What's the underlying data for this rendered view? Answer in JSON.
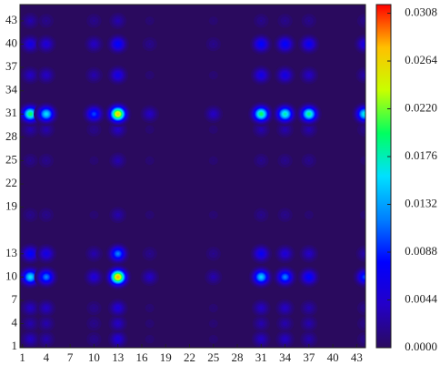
{
  "chart_data": {
    "type": "heatmap",
    "x": [
      2,
      4,
      10,
      13,
      17,
      25,
      31,
      34,
      37,
      44
    ],
    "y": [
      2,
      4,
      6,
      10,
      13,
      18,
      25,
      29,
      31,
      36,
      40,
      43
    ],
    "values": [
      [
        0.004,
        0.003,
        0.002,
        0.005,
        0.001,
        0.001,
        0.004,
        0.004,
        0.003,
        0.002
      ],
      [
        0.003,
        0.003,
        0.002,
        0.004,
        0.001,
        0.001,
        0.003,
        0.003,
        0.003,
        0.002
      ],
      [
        0.004,
        0.004,
        0.002,
        0.005,
        0.001,
        0.001,
        0.004,
        0.004,
        0.003,
        0.002
      ],
      [
        0.016,
        0.012,
        0.005,
        0.028,
        0.004,
        0.003,
        0.015,
        0.012,
        0.008,
        0.01
      ],
      [
        0.008,
        0.006,
        0.003,
        0.012,
        0.002,
        0.002,
        0.007,
        0.005,
        0.004,
        0.003
      ],
      [
        0.002,
        0.002,
        0.001,
        0.003,
        0.001,
        0.001,
        0.002,
        0.002,
        0.001,
        0.001
      ],
      [
        0.002,
        0.002,
        0.001,
        0.003,
        0.001,
        0.001,
        0.002,
        0.002,
        0.002,
        0.001
      ],
      [
        0.003,
        0.003,
        0.002,
        0.004,
        0.001,
        0.001,
        0.003,
        0.003,
        0.003,
        0.002
      ],
      [
        0.02,
        0.016,
        0.01,
        0.027,
        0.004,
        0.004,
        0.02,
        0.018,
        0.019,
        0.017
      ],
      [
        0.004,
        0.004,
        0.003,
        0.006,
        0.001,
        0.001,
        0.006,
        0.006,
        0.004,
        0.003
      ],
      [
        0.006,
        0.005,
        0.004,
        0.008,
        0.002,
        0.002,
        0.008,
        0.008,
        0.007,
        0.006
      ],
      [
        0.003,
        0.002,
        0.002,
        0.003,
        0.001,
        0.001,
        0.002,
        0.002,
        0.002,
        0.002
      ]
    ],
    "xlim": [
      0.7,
      44.1
    ],
    "ylim": [
      0.9,
      45.1
    ],
    "xticks": [
      1,
      4,
      7,
      10,
      13,
      16,
      19,
      22,
      25,
      28,
      31,
      34,
      37,
      40,
      43
    ],
    "yticks": [
      1,
      4,
      7,
      10,
      13,
      19,
      22,
      25,
      28,
      31,
      34,
      37,
      40,
      43
    ],
    "clim": [
      0,
      0.0316
    ],
    "cticks": [
      {
        "value": 0,
        "label": "0.0000"
      },
      0.0044,
      0.0088,
      0.0132,
      0.0176,
      {
        "value": 0.022,
        "label": "0.0220"
      },
      0.0264,
      0.0308
    ],
    "colorscale": [
      "#2a0a5e",
      "#2400c8",
      "#0000ff",
      "#0080ff",
      "#00e0ff",
      "#00ff60",
      "#c8ff00",
      "#ffc000",
      "#ff0000"
    ]
  }
}
